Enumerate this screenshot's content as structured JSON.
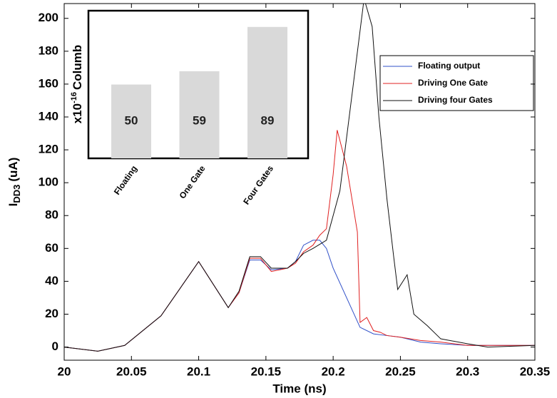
{
  "chart_data": [
    {
      "type": "line",
      "x_label": "Time (ns)",
      "y_label": {
        "main": "I",
        "sub": "DD3",
        "unit": "(uA)"
      },
      "xlim": [
        20,
        20.35
      ],
      "xticks": [
        20,
        20.05,
        20.1,
        20.15,
        20.2,
        20.25,
        20.3,
        20.35
      ],
      "ylim": [
        -8,
        209
      ],
      "yticks": [
        0,
        20,
        40,
        60,
        80,
        100,
        120,
        140,
        160,
        180,
        200
      ],
      "legend": "upper right",
      "series": [
        {
          "name": "Floating output",
          "color": "#3050c8",
          "x": [
            20,
            20.025,
            20.045,
            20.072,
            20.1,
            20.122,
            20.13,
            20.138,
            20.146,
            20.154,
            20.166,
            20.172,
            20.178,
            20.185,
            20.19,
            20.195,
            20.2,
            20.21,
            20.22,
            20.23,
            20.24,
            20.25,
            20.265,
            20.28,
            20.3,
            20.35
          ],
          "values": [
            0,
            -2.5,
            1,
            19,
            52,
            24,
            33,
            53,
            53,
            47,
            48,
            52,
            62,
            65,
            65,
            60,
            48,
            30,
            12,
            8,
            7,
            6,
            3,
            2,
            1,
            1
          ]
        },
        {
          "name": "Driving One Gate",
          "color": "#e02020",
          "x": [
            20,
            20.025,
            20.045,
            20.072,
            20.1,
            20.122,
            20.13,
            20.138,
            20.146,
            20.154,
            20.166,
            20.172,
            20.178,
            20.185,
            20.19,
            20.195,
            20.2,
            20.203,
            20.21,
            20.218,
            20.22,
            20.225,
            20.23,
            20.235,
            20.24,
            20.25,
            20.265,
            20.28,
            20.3,
            20.35
          ],
          "values": [
            0,
            -2.5,
            1,
            19,
            52,
            24,
            33,
            54,
            54,
            46,
            48,
            51,
            58,
            62,
            68,
            72,
            105,
            132,
            110,
            70,
            15,
            18,
            10,
            9,
            7,
            6,
            4,
            3,
            1,
            1
          ]
        },
        {
          "name": "Driving four Gates",
          "color": "#111111",
          "x": [
            20,
            20.025,
            20.045,
            20.072,
            20.1,
            20.122,
            20.13,
            20.138,
            20.146,
            20.154,
            20.166,
            20.172,
            20.178,
            20.185,
            20.195,
            20.205,
            20.215,
            20.223,
            20.229,
            20.234,
            20.24,
            20.245,
            20.248,
            20.255,
            20.26,
            20.27,
            20.28,
            20.3,
            20.315,
            20.35
          ],
          "values": [
            0,
            -2.5,
            1,
            19,
            52,
            24,
            34,
            55,
            55,
            48,
            48,
            52,
            57,
            60,
            65,
            95,
            160,
            212,
            195,
            140,
            90,
            55,
            35,
            44,
            20,
            13,
            5,
            2,
            0,
            1
          ]
        }
      ]
    },
    {
      "type": "bar",
      "y_label": {
        "base": "x10",
        "exp": "-16",
        "unit": "Columb"
      },
      "categories": [
        "Floating",
        "One Gate",
        "Four Gates"
      ],
      "values": [
        50,
        59,
        89
      ],
      "color": "#d9d9d9",
      "ylim": [
        0,
        100
      ]
    }
  ]
}
